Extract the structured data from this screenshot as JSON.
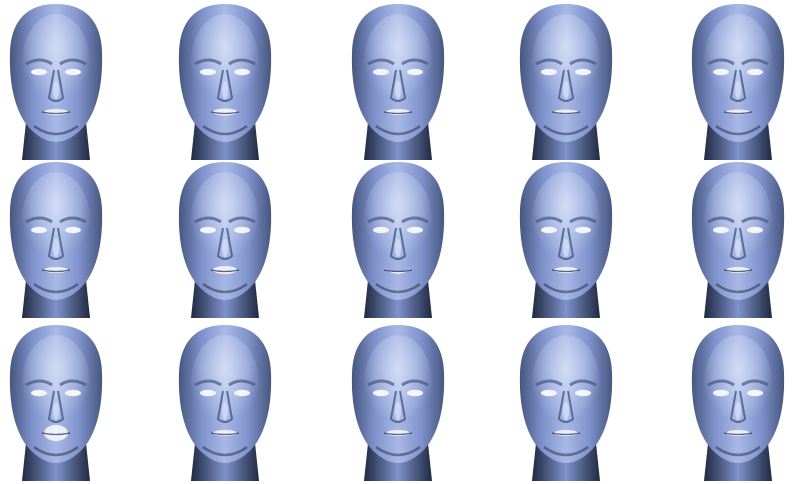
{
  "figure": {
    "background": "#ffffff",
    "mesh_colors": {
      "highlight": "#dfe7fb",
      "light": "#a9b9e6",
      "mid": "#7f92cc",
      "shadow": "#46577f",
      "deep": "#1f2940",
      "mouth": "#f3f6ff"
    },
    "rows": 3,
    "columns": 5,
    "faces": [
      {
        "id": "r1c1",
        "expression": "neutral",
        "mouth_open": 0.1
      },
      {
        "id": "r1c2",
        "expression": "neutral",
        "mouth_open": 0.15
      },
      {
        "id": "r1c3",
        "expression": "neutral",
        "mouth_open": 0.1
      },
      {
        "id": "r1c4",
        "expression": "neutral",
        "mouth_open": 0.05
      },
      {
        "id": "r1c5",
        "expression": "neutral",
        "mouth_open": 0.05
      },
      {
        "id": "r2c1",
        "expression": "neutral",
        "mouth_open": 0.1
      },
      {
        "id": "r2c2",
        "expression": "neutral",
        "mouth_open": 0.2
      },
      {
        "id": "r2c3",
        "expression": "smile",
        "mouth_open": 0.35
      },
      {
        "id": "r2c4",
        "expression": "neutral",
        "mouth_open": 0.1
      },
      {
        "id": "r2c5",
        "expression": "neutral",
        "mouth_open": 0.1
      },
      {
        "id": "r3c1",
        "expression": "open-mouth",
        "mouth_open": 0.6
      },
      {
        "id": "r3c2",
        "expression": "neutral",
        "mouth_open": 0.1
      },
      {
        "id": "r3c3",
        "expression": "neutral",
        "mouth_open": 0.1
      },
      {
        "id": "r3c4",
        "expression": "neutral",
        "mouth_open": 0.1
      },
      {
        "id": "r3c5",
        "expression": "neutral",
        "mouth_open": 0.1
      }
    ]
  }
}
